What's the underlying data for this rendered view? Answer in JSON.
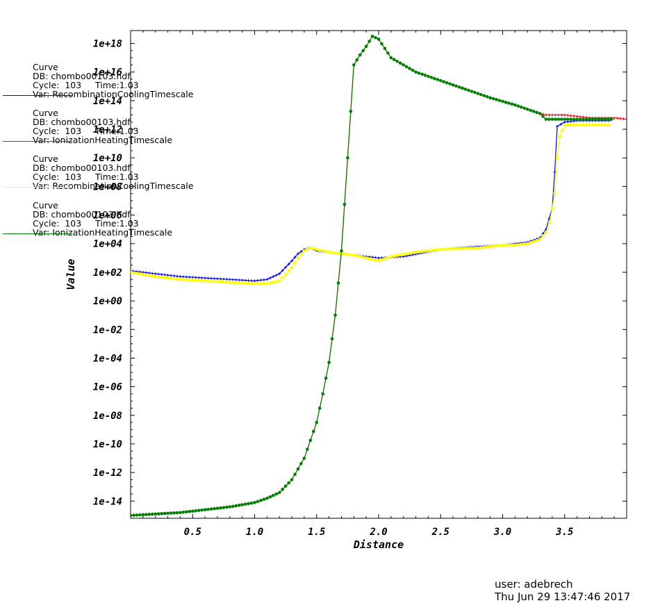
{
  "legend": {
    "entries": [
      {
        "title": "Curve",
        "db": "DB: chombo00103.hdf",
        "cycle": "Cycle:  103",
        "time": "Time:1.03",
        "var": "Var: RecombinationCoolingTimescale",
        "color": "#0000ff"
      },
      {
        "title": "Curve",
        "db": "DB: chombo00103.hdf",
        "cycle": "Cycle:  103",
        "time": "Time:1.03",
        "var": "Var: IonizationHeatingTimescale",
        "color": "#ff0000"
      },
      {
        "title": "Curve",
        "db": "DB: chombo00103.hdf",
        "cycle": "Cycle:  103",
        "time": "Time:1.03",
        "var": "Var: RecombinationCoolingTimescale",
        "color": "#ffff00"
      },
      {
        "title": "Curve",
        "db": "DB: chombo00103.hdf",
        "cycle": "Cycle:  103",
        "time": "Time:1.03",
        "var": "Var: IonizationHeatingTimescale",
        "color": "#008000"
      }
    ]
  },
  "footer": {
    "user": "user: adebrech",
    "date": "Thu Jun 29 13:47:46 2017"
  },
  "chart_data": {
    "type": "line",
    "xlabel": "Distance",
    "ylabel": "Value",
    "yscale": "log",
    "xlim": [
      0,
      4.0
    ],
    "ylim_exponent": [
      -15.2,
      18.9
    ],
    "xticks": [
      0.5,
      1.0,
      1.5,
      2.0,
      2.5,
      3.0,
      3.5
    ],
    "xtick_labels": [
      "0.5",
      "1.0",
      "1.5",
      "2.0",
      "2.5",
      "3.0",
      "3.5"
    ],
    "yticks_exponent": [
      -14,
      -12,
      -10,
      -8,
      -6,
      -4,
      -2,
      0,
      2,
      4,
      6,
      8,
      10,
      12,
      14,
      16,
      18
    ],
    "ytick_labels": [
      "1e-14",
      "1e-12",
      "1e-10",
      "1e-08",
      "1e-06",
      "1e-04",
      "1e-02",
      "1e+00",
      "1e+02",
      "1e+04",
      "1e+06",
      "1e+08",
      "1e+10",
      "1e+12",
      "1e+14",
      "1e+16",
      "1e+18"
    ],
    "series": [
      {
        "name": "Var: RecombinationCoolingTimescale",
        "color": "#0000ff",
        "marker": "plus",
        "x": [
          0.0,
          0.2,
          0.4,
          0.6,
          0.8,
          1.0,
          1.1,
          1.2,
          1.3,
          1.35,
          1.4,
          1.45,
          1.5,
          1.6,
          1.7,
          1.8,
          2.0,
          2.2,
          2.5,
          2.8,
          3.0,
          3.1,
          3.2,
          3.3,
          3.35,
          3.4,
          3.42,
          3.44,
          3.5,
          3.6,
          3.7,
          3.8,
          3.88
        ],
        "y_exp": [
          2.1,
          1.9,
          1.7,
          1.6,
          1.5,
          1.4,
          1.5,
          1.9,
          2.8,
          3.3,
          3.6,
          3.7,
          3.5,
          3.4,
          3.3,
          3.2,
          3.0,
          3.1,
          3.6,
          3.8,
          3.9,
          4.0,
          4.1,
          4.4,
          5.0,
          6.5,
          9.0,
          12.2,
          12.5,
          12.6,
          12.6,
          12.6,
          12.6
        ]
      },
      {
        "name": "Var: IonizationHeatingTimescale",
        "color": "#ff0000",
        "marker": "plus",
        "x": [
          0.0,
          0.2,
          0.4,
          0.6,
          0.8,
          1.0,
          1.1,
          1.2,
          1.3,
          1.4,
          1.5,
          1.55,
          1.6,
          1.65,
          1.7,
          1.75,
          1.8,
          1.85,
          1.9,
          1.95,
          2.0,
          2.1,
          2.3,
          2.5,
          2.7,
          2.9,
          3.1,
          3.3,
          3.35,
          3.5,
          3.7,
          3.9,
          4.0
        ],
        "y_exp": [
          -15.0,
          -14.9,
          -14.8,
          -14.6,
          -14.4,
          -14.1,
          -13.8,
          -13.4,
          -12.5,
          -11.0,
          -8.5,
          -6.5,
          -4.3,
          -1.0,
          3.5,
          10.0,
          16.5,
          17.2,
          17.8,
          18.5,
          18.3,
          17.0,
          16.0,
          15.4,
          14.8,
          14.2,
          13.7,
          13.1,
          13.0,
          13.0,
          12.8,
          12.8,
          12.7
        ]
      },
      {
        "name": "Var: RecombinationCoolingTimescale",
        "color": "#ffff00",
        "marker": "circle",
        "x": [
          0.0,
          0.2,
          0.4,
          0.6,
          0.8,
          1.0,
          1.1,
          1.2,
          1.3,
          1.35,
          1.4,
          1.45,
          1.5,
          1.6,
          1.7,
          1.8,
          1.9,
          2.0,
          2.1,
          2.3,
          2.5,
          2.8,
          3.0,
          3.1,
          3.2,
          3.3,
          3.35,
          3.38,
          3.42,
          3.44,
          3.46,
          3.5,
          3.6,
          3.7,
          3.8,
          3.88
        ],
        "y_exp": [
          2.0,
          1.7,
          1.5,
          1.4,
          1.3,
          1.2,
          1.2,
          1.4,
          2.3,
          3.0,
          3.5,
          3.7,
          3.6,
          3.4,
          3.3,
          3.2,
          3.0,
          2.8,
          3.1,
          3.4,
          3.6,
          3.7,
          3.9,
          3.9,
          4.0,
          4.3,
          4.8,
          5.5,
          7.5,
          10.0,
          11.5,
          12.3,
          12.3,
          12.3,
          12.3,
          12.3
        ]
      },
      {
        "name": "Var: IonizationHeatingTimescale",
        "color": "#008000",
        "marker": "circle",
        "x": [
          0.0,
          0.2,
          0.4,
          0.6,
          0.8,
          1.0,
          1.1,
          1.2,
          1.3,
          1.4,
          1.5,
          1.55,
          1.6,
          1.65,
          1.7,
          1.75,
          1.8,
          1.85,
          1.9,
          1.95,
          2.0,
          2.1,
          2.3,
          2.5,
          2.7,
          2.9,
          3.1,
          3.3,
          3.35,
          3.5,
          3.7,
          3.9
        ],
        "y_exp": [
          -15.0,
          -14.9,
          -14.8,
          -14.6,
          -14.4,
          -14.1,
          -13.8,
          -13.4,
          -12.5,
          -11.0,
          -8.5,
          -6.5,
          -4.3,
          -1.0,
          3.5,
          10.0,
          16.5,
          17.2,
          17.8,
          18.5,
          18.3,
          17.0,
          16.0,
          15.4,
          14.8,
          14.2,
          13.7,
          13.1,
          12.7,
          12.7,
          12.7,
          12.7
        ]
      }
    ]
  }
}
